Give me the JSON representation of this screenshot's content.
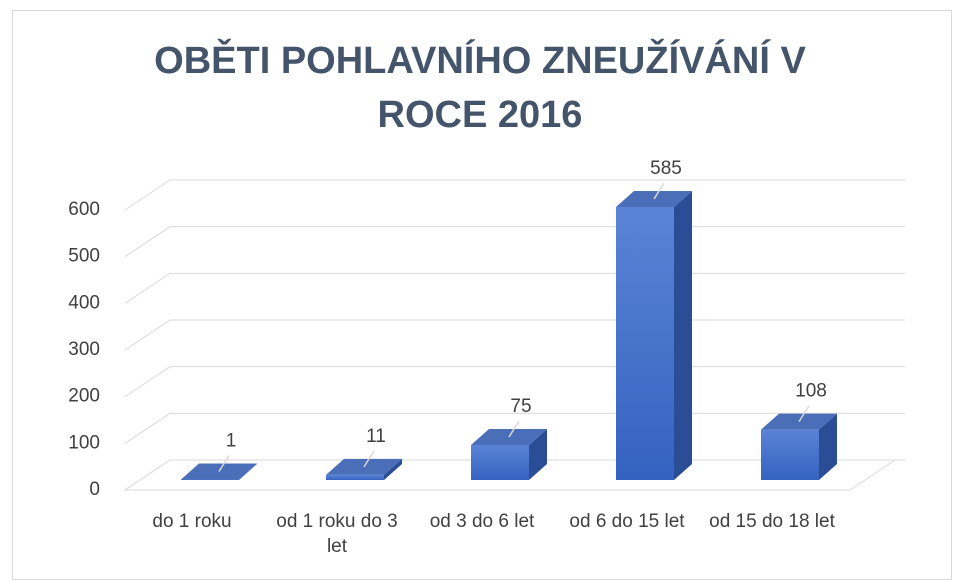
{
  "chart_data": {
    "type": "bar3d",
    "title": "OBĚTI POHLAVNÍHO ZNEUŽÍVÁNÍ V ROCE 2016",
    "categories": [
      "do 1 roku",
      "od 1 roku do 3 let",
      "od 3 do 6 let",
      "od 6 do 15 let",
      "od 15 do 18 let"
    ],
    "values": [
      1,
      11,
      75,
      585,
      108
    ],
    "color": "#4472c4",
    "ylim": [
      0,
      600
    ],
    "yticks": [
      0,
      100,
      200,
      300,
      400,
      500,
      600
    ],
    "grid": true
  }
}
